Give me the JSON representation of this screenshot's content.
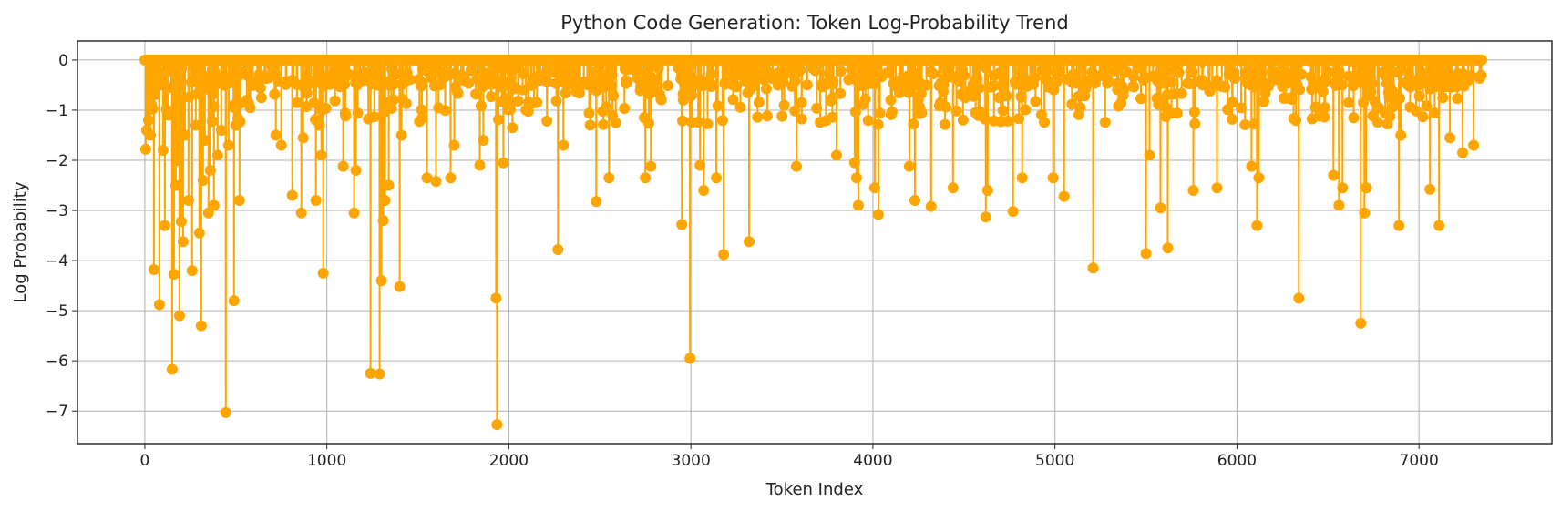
{
  "chart_data": {
    "type": "line",
    "title": "Python Code Generation: Token Log-Probability Trend",
    "xlabel": "Token Index",
    "ylabel": "Log Probability",
    "xlim": [
      -370,
      7730
    ],
    "ylim": [
      -7.65,
      0.38
    ],
    "xticks": [
      0,
      1000,
      2000,
      3000,
      4000,
      5000,
      6000,
      7000
    ],
    "yticks": [
      0,
      -1,
      -2,
      -3,
      -4,
      -5,
      -6,
      -7
    ],
    "xtick_labels": [
      "0",
      "1000",
      "2000",
      "3000",
      "4000",
      "5000",
      "6000",
      "7000"
    ],
    "ytick_labels": [
      "0",
      "−1",
      "−2",
      "−3",
      "−4",
      "−5",
      "−6",
      "−7"
    ],
    "grid": true,
    "legend": "none",
    "series": [
      {
        "color": "#FFA500",
        "marker": "circle",
        "num_points": 7345,
        "baseline": 0,
        "notable_points": [
          {
            "x": 5,
            "y": -1.78
          },
          {
            "x": 10,
            "y": -1.4
          },
          {
            "x": 20,
            "y": -1.2
          },
          {
            "x": 30,
            "y": -1.5
          },
          {
            "x": 50,
            "y": -4.18
          },
          {
            "x": 80,
            "y": -4.88
          },
          {
            "x": 100,
            "y": -1.8
          },
          {
            "x": 110,
            "y": -3.3
          },
          {
            "x": 130,
            "y": -1.1
          },
          {
            "x": 150,
            "y": -6.17
          },
          {
            "x": 160,
            "y": -4.27
          },
          {
            "x": 170,
            "y": -2.5
          },
          {
            "x": 180,
            "y": -2.0
          },
          {
            "x": 190,
            "y": -5.1
          },
          {
            "x": 200,
            "y": -3.22
          },
          {
            "x": 210,
            "y": -3.62
          },
          {
            "x": 220,
            "y": -1.5
          },
          {
            "x": 240,
            "y": -2.8
          },
          {
            "x": 260,
            "y": -4.2
          },
          {
            "x": 280,
            "y": -1.3
          },
          {
            "x": 300,
            "y": -3.45
          },
          {
            "x": 310,
            "y": -5.3
          },
          {
            "x": 320,
            "y": -2.4
          },
          {
            "x": 330,
            "y": -1.6
          },
          {
            "x": 350,
            "y": -3.05
          },
          {
            "x": 360,
            "y": -2.2
          },
          {
            "x": 380,
            "y": -2.9
          },
          {
            "x": 400,
            "y": -1.9
          },
          {
            "x": 420,
            "y": -1.4
          },
          {
            "x": 445,
            "y": -7.03
          },
          {
            "x": 460,
            "y": -1.7
          },
          {
            "x": 490,
            "y": -4.8
          },
          {
            "x": 500,
            "y": -1.3
          },
          {
            "x": 520,
            "y": -2.8
          },
          {
            "x": 560,
            "y": -0.8
          },
          {
            "x": 640,
            "y": -0.75
          },
          {
            "x": 720,
            "y": -1.5
          },
          {
            "x": 750,
            "y": -1.7
          },
          {
            "x": 810,
            "y": -2.7
          },
          {
            "x": 860,
            "y": -3.05
          },
          {
            "x": 870,
            "y": -1.55
          },
          {
            "x": 940,
            "y": -2.8
          },
          {
            "x": 960,
            "y": -1.3
          },
          {
            "x": 970,
            "y": -1.9
          },
          {
            "x": 980,
            "y": -4.25
          },
          {
            "x": 1090,
            "y": -2.12
          },
          {
            "x": 1150,
            "y": -3.05
          },
          {
            "x": 1160,
            "y": -2.2
          },
          {
            "x": 1240,
            "y": -6.25
          },
          {
            "x": 1290,
            "y": -6.26
          },
          {
            "x": 1300,
            "y": -4.4
          },
          {
            "x": 1310,
            "y": -3.2
          },
          {
            "x": 1320,
            "y": -2.8
          },
          {
            "x": 1340,
            "y": -2.5
          },
          {
            "x": 1400,
            "y": -4.52
          },
          {
            "x": 1410,
            "y": -1.5
          },
          {
            "x": 1550,
            "y": -2.35
          },
          {
            "x": 1600,
            "y": -2.42
          },
          {
            "x": 1680,
            "y": -2.35
          },
          {
            "x": 1700,
            "y": -1.7
          },
          {
            "x": 1840,
            "y": -2.1
          },
          {
            "x": 1860,
            "y": -1.6
          },
          {
            "x": 1930,
            "y": -4.75
          },
          {
            "x": 1935,
            "y": -7.27
          },
          {
            "x": 1970,
            "y": -2.05
          },
          {
            "x": 2020,
            "y": -1.35
          },
          {
            "x": 2270,
            "y": -3.78
          },
          {
            "x": 2300,
            "y": -1.7
          },
          {
            "x": 2480,
            "y": -2.82
          },
          {
            "x": 2550,
            "y": -2.35
          },
          {
            "x": 2750,
            "y": -2.35
          },
          {
            "x": 2780,
            "y": -2.12
          },
          {
            "x": 2950,
            "y": -3.28
          },
          {
            "x": 2995,
            "y": -5.95
          },
          {
            "x": 3050,
            "y": -2.1
          },
          {
            "x": 3070,
            "y": -2.6
          },
          {
            "x": 3140,
            "y": -2.35
          },
          {
            "x": 3180,
            "y": -3.88
          },
          {
            "x": 3320,
            "y": -3.62
          },
          {
            "x": 3580,
            "y": -2.12
          },
          {
            "x": 3800,
            "y": -1.9
          },
          {
            "x": 3900,
            "y": -2.05
          },
          {
            "x": 3910,
            "y": -2.35
          },
          {
            "x": 3920,
            "y": -2.9
          },
          {
            "x": 4010,
            "y": -2.55
          },
          {
            "x": 4030,
            "y": -3.08
          },
          {
            "x": 4200,
            "y": -2.12
          },
          {
            "x": 4230,
            "y": -2.8
          },
          {
            "x": 4320,
            "y": -2.92
          },
          {
            "x": 4440,
            "y": -2.55
          },
          {
            "x": 4620,
            "y": -3.13
          },
          {
            "x": 4630,
            "y": -2.6
          },
          {
            "x": 4770,
            "y": -3.02
          },
          {
            "x": 4820,
            "y": -2.35
          },
          {
            "x": 4990,
            "y": -2.35
          },
          {
            "x": 5050,
            "y": -2.72
          },
          {
            "x": 5210,
            "y": -4.15
          },
          {
            "x": 5500,
            "y": -3.86
          },
          {
            "x": 5520,
            "y": -1.9
          },
          {
            "x": 5580,
            "y": -2.95
          },
          {
            "x": 5620,
            "y": -3.75
          },
          {
            "x": 5760,
            "y": -2.6
          },
          {
            "x": 5890,
            "y": -2.55
          },
          {
            "x": 6080,
            "y": -2.12
          },
          {
            "x": 6110,
            "y": -3.3
          },
          {
            "x": 6120,
            "y": -2.35
          },
          {
            "x": 6340,
            "y": -4.75
          },
          {
            "x": 6530,
            "y": -2.3
          },
          {
            "x": 6560,
            "y": -2.9
          },
          {
            "x": 6580,
            "y": -2.55
          },
          {
            "x": 6680,
            "y": -5.25
          },
          {
            "x": 6700,
            "y": -3.05
          },
          {
            "x": 6710,
            "y": -2.55
          },
          {
            "x": 6890,
            "y": -3.3
          },
          {
            "x": 6900,
            "y": -1.5
          },
          {
            "x": 7060,
            "y": -2.58
          },
          {
            "x": 7110,
            "y": -3.3
          },
          {
            "x": 7170,
            "y": -1.55
          },
          {
            "x": 7240,
            "y": -1.85
          },
          {
            "x": 7300,
            "y": -1.7
          },
          {
            "x": 7345,
            "y": -0.02
          }
        ]
      }
    ]
  }
}
